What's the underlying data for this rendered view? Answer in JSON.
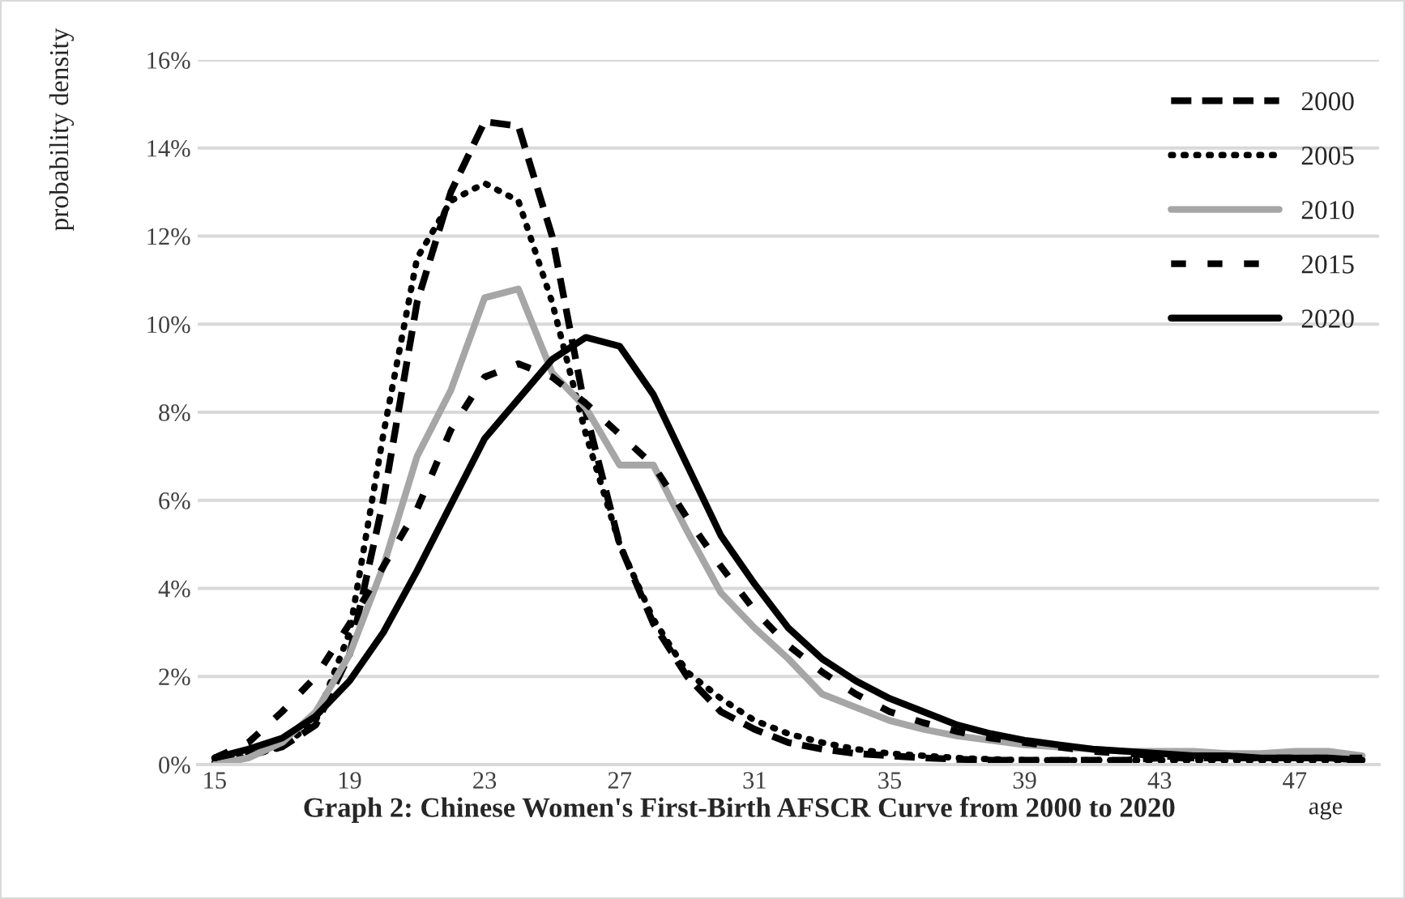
{
  "chart_data": {
    "type": "line",
    "title": "Graph 2: Chinese Women's First-Birth AFSCR Curve from 2000 to 2020",
    "xlabel": "age",
    "ylabel": "probability density",
    "x": [
      15,
      16,
      17,
      18,
      19,
      20,
      21,
      22,
      23,
      24,
      25,
      26,
      27,
      28,
      29,
      30,
      31,
      32,
      33,
      34,
      35,
      36,
      37,
      38,
      39,
      40,
      41,
      42,
      43,
      44,
      45,
      46,
      47,
      48,
      49
    ],
    "xlim": [
      14.5,
      49.5
    ],
    "xticks": [
      15,
      19,
      23,
      27,
      31,
      35,
      39,
      43,
      47
    ],
    "ylim": [
      0,
      16
    ],
    "yticks": [
      {
        "value": 0,
        "label": "0%"
      },
      {
        "value": 2,
        "label": "2%"
      },
      {
        "value": 4,
        "label": "4%"
      },
      {
        "value": 6,
        "label": "6%"
      },
      {
        "value": 8,
        "label": "8%"
      },
      {
        "value": 10,
        "label": "10%"
      },
      {
        "value": 12,
        "label": "12%"
      },
      {
        "value": 14,
        "label": "14%"
      },
      {
        "value": 16,
        "label": "16%"
      }
    ],
    "grid": "y",
    "legend": "top right",
    "marker": "none",
    "series": [
      {
        "name": "2000",
        "color": "#000000",
        "line_style": "dashed",
        "values": [
          0.1,
          0.2,
          0.4,
          0.9,
          2.5,
          6.0,
          10.5,
          13.0,
          14.6,
          14.5,
          12.0,
          8.0,
          5.0,
          3.2,
          2.0,
          1.2,
          0.8,
          0.5,
          0.35,
          0.25,
          0.2,
          0.15,
          0.12,
          0.1,
          0.1,
          0.1,
          0.1,
          0.1,
          0.15,
          0.15,
          0.15,
          0.15,
          0.15,
          0.15,
          0.15
        ]
      },
      {
        "name": "2005",
        "color": "#000000",
        "line_style": "dotted",
        "values": [
          0.05,
          0.2,
          0.4,
          1.0,
          3.0,
          7.5,
          11.5,
          12.8,
          13.2,
          12.8,
          10.5,
          7.5,
          5.0,
          3.3,
          2.1,
          1.5,
          1.0,
          0.7,
          0.5,
          0.35,
          0.25,
          0.2,
          0.15,
          0.12,
          0.1,
          0.1,
          0.1,
          0.1,
          0.1,
          0.1,
          0.1,
          0.1,
          0.1,
          0.1,
          0.1
        ]
      },
      {
        "name": "2010",
        "color": "#a6a6a6",
        "line_style": "solid",
        "values": [
          0.0,
          0.15,
          0.5,
          1.2,
          2.5,
          4.5,
          7.0,
          8.5,
          10.6,
          10.8,
          8.9,
          8.1,
          6.8,
          6.8,
          5.3,
          3.9,
          3.1,
          2.4,
          1.6,
          1.3,
          1.0,
          0.8,
          0.65,
          0.55,
          0.45,
          0.4,
          0.35,
          0.3,
          0.3,
          0.3,
          0.25,
          0.25,
          0.3,
          0.3,
          0.2
        ]
      },
      {
        "name": "2015",
        "color": "#000000",
        "line_style": "dashed",
        "values": [
          0.15,
          0.5,
          1.2,
          2.0,
          3.2,
          4.5,
          5.8,
          7.6,
          8.8,
          9.1,
          8.8,
          8.2,
          7.5,
          6.8,
          5.6,
          4.5,
          3.5,
          2.7,
          2.1,
          1.6,
          1.2,
          0.95,
          0.75,
          0.6,
          0.5,
          0.4,
          0.3,
          0.25,
          0.2,
          0.15,
          0.15,
          0.15,
          0.15,
          0.15,
          0.15
        ]
      },
      {
        "name": "2020",
        "color": "#000000",
        "line_style": "solid",
        "values": [
          0.15,
          0.35,
          0.6,
          1.1,
          1.9,
          3.0,
          4.4,
          5.9,
          7.4,
          8.3,
          9.2,
          9.7,
          9.5,
          8.4,
          6.8,
          5.2,
          4.1,
          3.1,
          2.4,
          1.9,
          1.5,
          1.2,
          0.9,
          0.7,
          0.55,
          0.45,
          0.35,
          0.3,
          0.25,
          0.2,
          0.2,
          0.15,
          0.15,
          0.15,
          0.1
        ]
      }
    ]
  }
}
